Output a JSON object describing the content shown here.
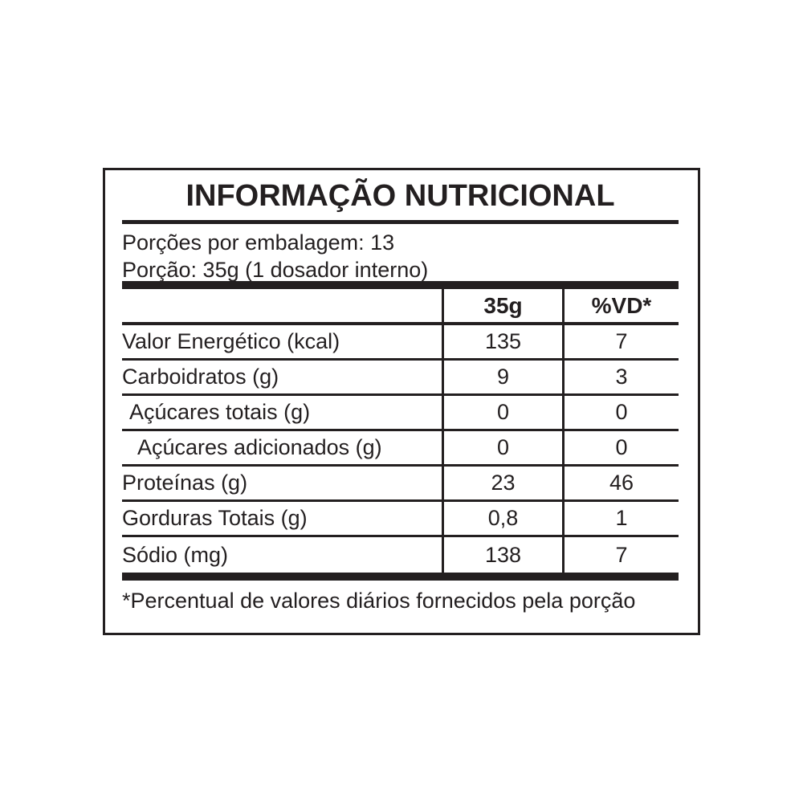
{
  "label": {
    "title": "INFORMAÇÃO NUTRICIONAL",
    "servings": {
      "per_package": "Porções por embalagem: 13",
      "serving_size": "Porção: 35g (1 dosador interno)"
    },
    "table": {
      "header": {
        "amount": "35g",
        "dv": "%VD*"
      },
      "rows": [
        {
          "label": "Valor Energético (kcal)",
          "amount": "135",
          "dv": "7"
        },
        {
          "label": "Carboidratos (g)",
          "amount": "9",
          "dv": "3"
        },
        {
          "label": "Açúcares totais (g)",
          "amount": "0",
          "dv": "0"
        },
        {
          "label": "Açúcares adicionados (g)",
          "amount": "0",
          "dv": "0"
        },
        {
          "label": "Proteínas (g)",
          "amount": "23",
          "dv": "46"
        },
        {
          "label": "Gorduras Totais (g)",
          "amount": "0,8",
          "dv": "1"
        },
        {
          "label": "Sódio (mg)",
          "amount": "138",
          "dv": "7"
        }
      ]
    },
    "footnote": "*Percentual de valores diários fornecidos pela porção",
    "colors": {
      "ink": "#231f20",
      "background": "#ffffff"
    }
  }
}
